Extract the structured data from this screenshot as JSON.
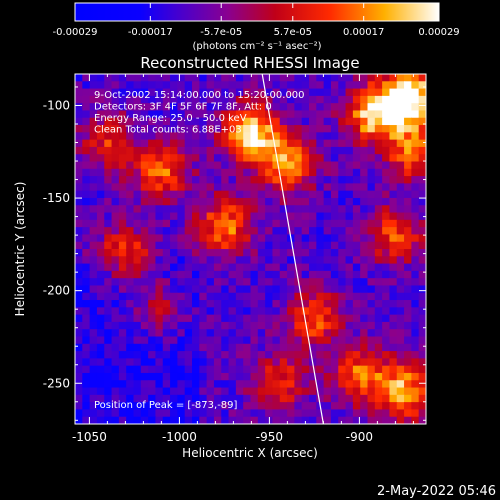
{
  "colorbar": {
    "tick_labels": [
      "-0.00029",
      "-0.00017",
      "-5.7e-05",
      "5.7e-05",
      "0.00017",
      "0.00029"
    ],
    "tick_values": [
      -0.00029,
      -0.00017,
      -5.7e-05,
      5.7e-05,
      0.00017,
      0.00029
    ],
    "range": [
      -0.00029,
      0.00029
    ],
    "units_text": "(photons cm⁻² s⁻¹ asec⁻²)"
  },
  "chart_data": {
    "type": "heatmap",
    "title": "Reconstructed RHESSI Image",
    "xlabel": "Heliocentric X (arcsec)",
    "ylabel": "Heliocentric Y (arcsec)",
    "xlim": [
      -1058,
      -863
    ],
    "ylim": [
      -272,
      -83
    ],
    "xticks": [
      -1050,
      -1000,
      -950,
      -900
    ],
    "yticks": [
      -100,
      -150,
      -200,
      -250
    ],
    "info_lines": [
      "9-Oct-2002 15:14:00.000 to 15:20:00.000",
      "Detectors: 3F 4F 5F 6F 7F 8F, Att: 0",
      "Energy Range: 25.0 - 50.0 keV",
      "Clean     Total counts: 6.88E+03"
    ],
    "peak_label": "Position of Peak = [-873,-89]",
    "peak": [
      -873,
      -89
    ],
    "limb_line": [
      [
        -954,
        -83
      ],
      [
        -920,
        -272
      ]
    ],
    "hot_spots": [
      {
        "x": -872,
        "y": -95,
        "amp": 1.0
      },
      {
        "x": -892,
        "y": -105,
        "amp": 0.8
      },
      {
        "x": -960,
        "y": -115,
        "amp": 0.85
      },
      {
        "x": -940,
        "y": -132,
        "amp": 0.7
      },
      {
        "x": -1010,
        "y": -135,
        "amp": 0.6
      },
      {
        "x": -975,
        "y": -165,
        "amp": 0.65
      },
      {
        "x": -1030,
        "y": -180,
        "amp": 0.5
      },
      {
        "x": -880,
        "y": -170,
        "amp": 0.55
      },
      {
        "x": -925,
        "y": -215,
        "amp": 0.55
      },
      {
        "x": -875,
        "y": -255,
        "amp": 0.75
      },
      {
        "x": -900,
        "y": -245,
        "amp": 0.6
      },
      {
        "x": -945,
        "y": -250,
        "amp": 0.5
      },
      {
        "x": -1040,
        "y": -120,
        "amp": 0.45
      },
      {
        "x": -1010,
        "y": -210,
        "amp": 0.35
      },
      {
        "x": -870,
        "y": -125,
        "amp": 0.6
      }
    ]
  },
  "footer_date": "2-May-2022 05:46"
}
